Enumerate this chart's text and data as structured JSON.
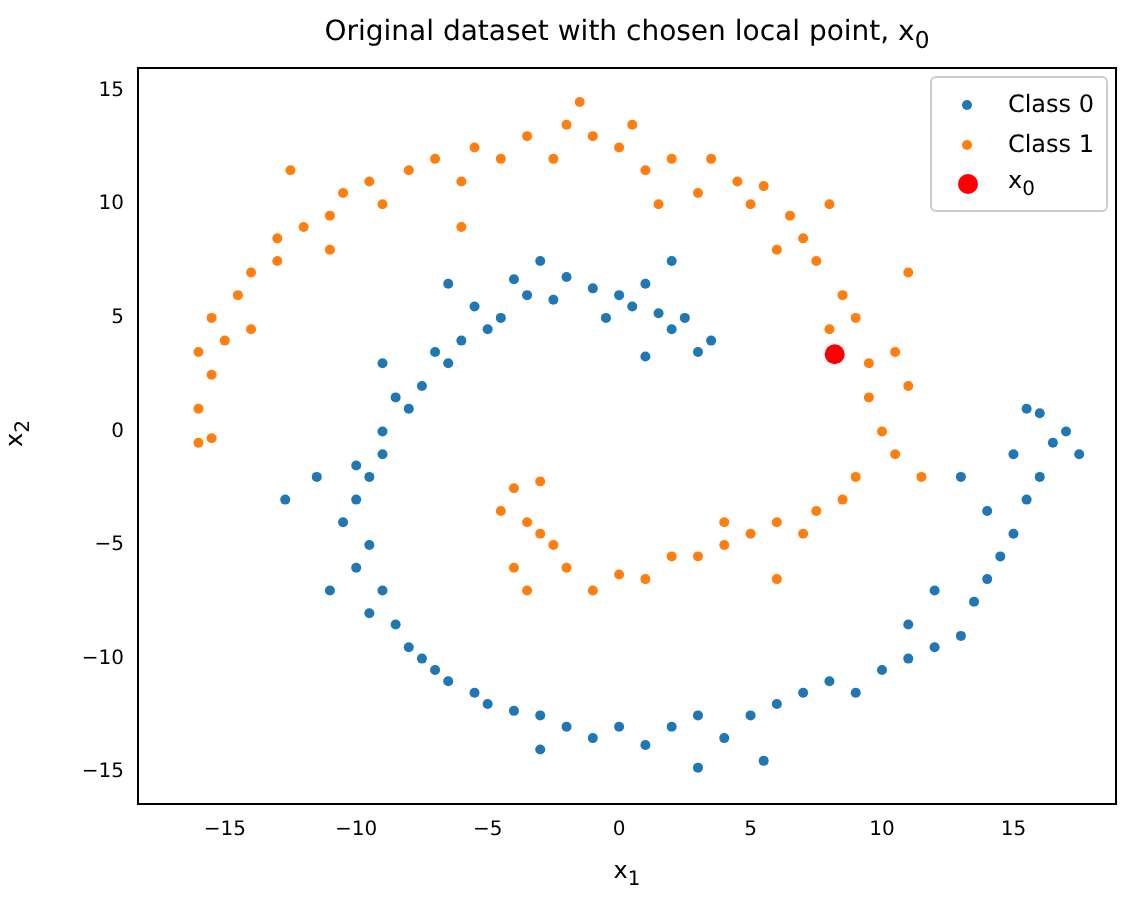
{
  "chart_data": {
    "type": "scatter",
    "title": "Original dataset with chosen local point, x$_{0}$",
    "xlabel": "x$_{1}$",
    "ylabel": "x$_{2}$",
    "xlim": [
      -18.3,
      18.9
    ],
    "ylim": [
      -16.4,
      16.0
    ],
    "xticks": [
      -15,
      -10,
      -5,
      0,
      5,
      10,
      15
    ],
    "yticks": [
      -15,
      -10,
      -5,
      0,
      5,
      10,
      15
    ],
    "grid": false,
    "legend": "top right",
    "marker": "circle",
    "series": [
      {
        "name": "Class 0",
        "color": "#1f77b4",
        "x": [
          -1,
          0,
          0.5,
          1,
          -0.5,
          1.5,
          2,
          2.5,
          3,
          -2,
          -2.5,
          -3,
          -3.5,
          -4,
          -4.5,
          -5,
          -5.5,
          -6,
          -6.5,
          -7,
          -7.5,
          -8,
          -8.5,
          -9,
          -9,
          -9.5,
          -10,
          -10,
          -10.5,
          -9.5,
          -10,
          -9,
          -9.5,
          -8.5,
          -8,
          -7.5,
          -7,
          -6.5,
          -5.5,
          -5,
          -4,
          -3,
          -2,
          -1,
          0,
          1,
          2,
          3,
          4,
          5,
          5.5,
          6,
          7,
          8,
          9,
          10,
          11,
          12,
          13,
          13.5,
          14,
          14.5,
          15,
          15.5,
          16,
          15,
          16.5,
          17,
          17.5,
          15.5,
          16,
          14,
          13,
          12,
          11,
          3,
          -3,
          -12.7,
          -11,
          -11.5,
          -9,
          -6.5,
          2,
          1,
          3.5
        ],
        "values": [
          6.3,
          6,
          5.5,
          6.5,
          5,
          5.2,
          4.5,
          5,
          3.5,
          6.8,
          5.8,
          7.5,
          6,
          6.7,
          5,
          4.5,
          5.5,
          4,
          3,
          3.5,
          2,
          1,
          1.5,
          0,
          -1,
          -2,
          -1.5,
          -3,
          -4,
          -5,
          -6,
          -7,
          -8,
          -8.5,
          -9.5,
          -10,
          -10.5,
          -11,
          -11.5,
          -12,
          -12.3,
          -12.5,
          -13,
          -13.5,
          -13,
          -13.8,
          -13,
          -12.5,
          -13.5,
          -12.5,
          -14.5,
          -12,
          -11.5,
          -11,
          -11.5,
          -10.5,
          -10,
          -9.5,
          -9,
          -7.5,
          -6.5,
          -5.5,
          -4.5,
          -3,
          -2,
          -1,
          -0.5,
          0,
          -1,
          1,
          0.8,
          -3.5,
          -2,
          -7,
          -8.5,
          -14.8,
          -14,
          -3,
          -7,
          -2,
          3,
          6.5,
          7.5,
          3.3,
          4
        ]
      },
      {
        "name": "Class 1",
        "color": "#ff7f0e",
        "x": [
          -16,
          -16,
          -15.5,
          -16,
          -15,
          -15.5,
          -14.5,
          -14,
          -13,
          -13,
          -12,
          -11,
          -10.5,
          -9.5,
          -9,
          -8,
          -7,
          -6,
          -5.5,
          -4.5,
          -3.5,
          -2.5,
          -1.5,
          -1,
          0,
          0.5,
          1,
          2,
          3,
          3.5,
          4.5,
          5,
          5.5,
          6.5,
          7,
          7.5,
          8.5,
          9,
          8,
          9.5,
          9.5,
          10,
          10.5,
          9,
          8.5,
          7.5,
          7,
          6,
          5,
          4,
          3,
          2,
          1,
          0,
          -1,
          -2,
          -2.5,
          -3,
          -3.5,
          -4,
          -4.5,
          -3,
          -4,
          -3.5,
          -15.5,
          -14,
          -12.5,
          -11,
          -6,
          -2,
          1.5,
          6,
          8,
          11,
          11.5,
          10.5,
          6,
          4,
          11
        ],
        "values": [
          -0.5,
          1,
          2.5,
          3.5,
          4,
          5,
          6,
          7,
          7.5,
          8.5,
          9,
          9.5,
          10.5,
          11,
          10,
          11.5,
          12,
          11,
          12.5,
          12,
          13,
          12,
          14.5,
          13,
          12.5,
          13.5,
          11.5,
          12,
          10.5,
          12,
          11,
          10,
          10.8,
          9.5,
          8.5,
          7.5,
          6,
          5,
          4.5,
          3,
          1.5,
          0,
          -1,
          -2,
          -3,
          -3.5,
          -4.5,
          -4,
          -4.5,
          -5,
          -5.5,
          -5.5,
          -6.5,
          -6.3,
          -7,
          -6,
          -5,
          -4.5,
          -4,
          -2.5,
          -3.5,
          -2.2,
          -6,
          -7,
          -0.3,
          4.5,
          11.5,
          8,
          9,
          13.5,
          10,
          8,
          10,
          2,
          -2,
          3.5,
          -6.5,
          -4,
          7
        ]
      },
      {
        "name": "x$_{0}$",
        "color": "#ff0000",
        "marker": "circle",
        "x": [
          8.2
        ],
        "values": [
          3.4
        ]
      }
    ]
  }
}
